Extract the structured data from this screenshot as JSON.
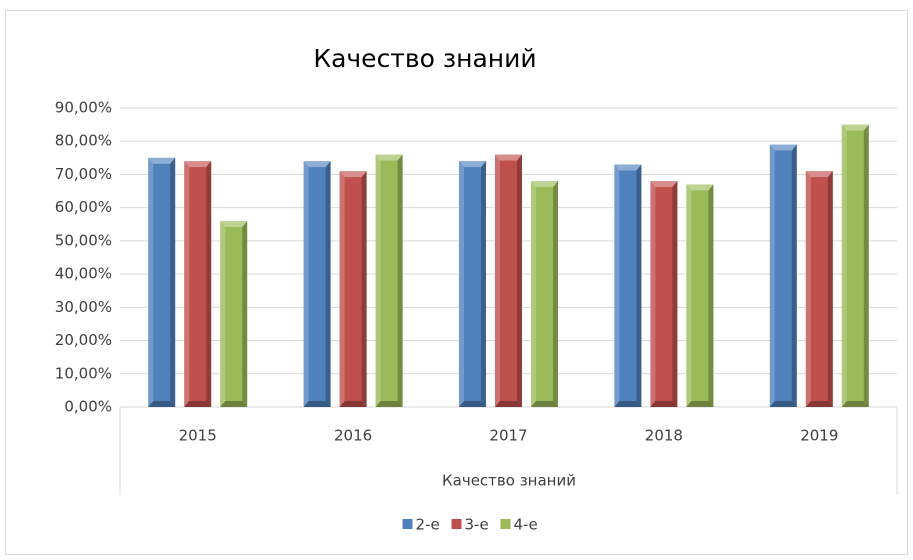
{
  "chart_data": {
    "type": "bar",
    "title": "Качество знаний",
    "x_label": "Качество знаний",
    "categories": [
      "2015",
      "2016",
      "2017",
      "2018",
      "2019"
    ],
    "series": [
      {
        "name": "2-е",
        "color": "#4f81bd",
        "values": [
          75,
          74,
          74,
          73,
          79
        ]
      },
      {
        "name": "3-е",
        "color": "#c0504d",
        "values": [
          74,
          71,
          76,
          68,
          71
        ]
      },
      {
        "name": "4-е",
        "color": "#9bbb59",
        "values": [
          56,
          76,
          68,
          67,
          85
        ]
      }
    ],
    "ylim": [
      0,
      90
    ],
    "yticks": [
      {
        "value": 0,
        "label": "0,00%"
      },
      {
        "value": 10,
        "label": "10,00%"
      },
      {
        "value": 20,
        "label": "20,00%"
      },
      {
        "value": 30,
        "label": "30,00%"
      },
      {
        "value": 40,
        "label": "40,00%"
      },
      {
        "value": 50,
        "label": "50,00%"
      },
      {
        "value": 60,
        "label": "60,00%"
      },
      {
        "value": 70,
        "label": "70,00%"
      },
      {
        "value": 80,
        "label": "80,00%"
      },
      {
        "value": 90,
        "label": "90,00%"
      }
    ],
    "grid": true,
    "legend": "bottom"
  }
}
